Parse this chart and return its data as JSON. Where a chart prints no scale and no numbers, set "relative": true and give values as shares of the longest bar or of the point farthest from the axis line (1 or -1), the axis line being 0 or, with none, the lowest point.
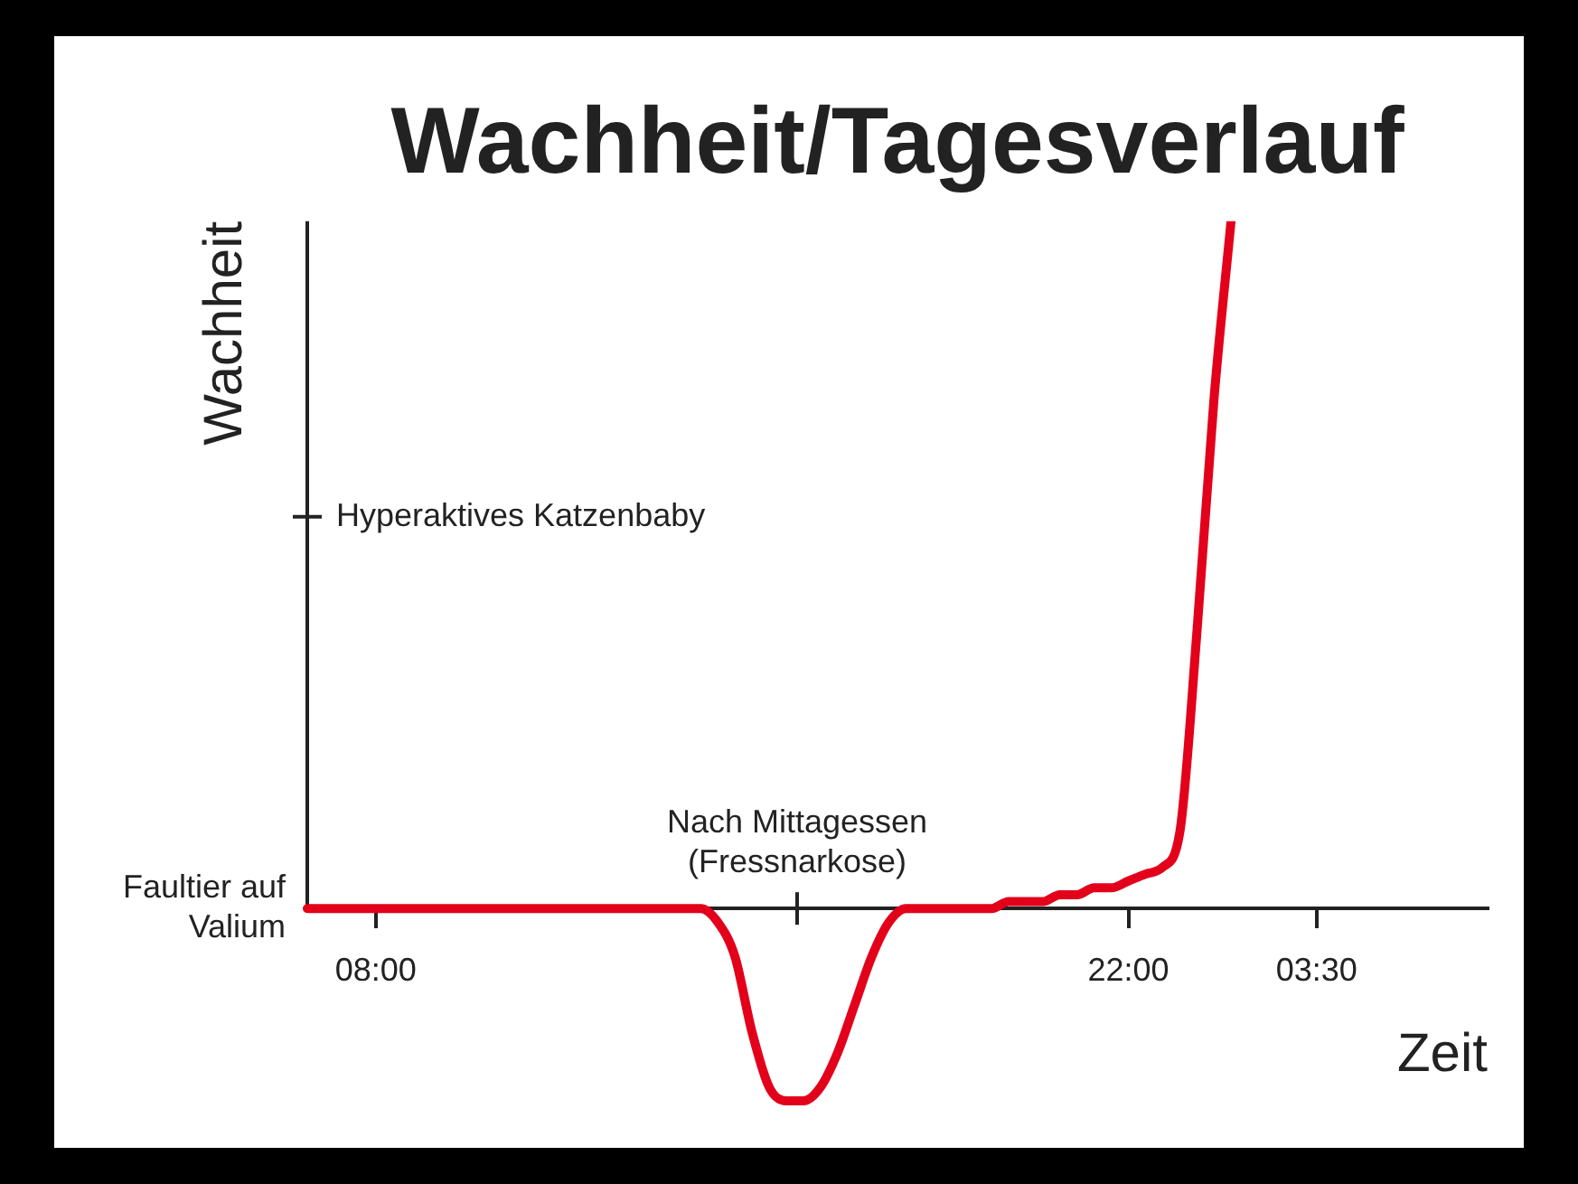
{
  "chart_data": {
    "type": "line",
    "title": "Wachheit/Tagesverlauf",
    "xlabel": "Zeit",
    "ylabel": "Wachheit",
    "relative": true,
    "categories": [
      null,
      null,
      null,
      null,
      "08:00",
      null,
      null,
      null,
      null,
      null,
      null,
      null,
      null,
      null,
      null,
      null,
      null,
      null,
      null,
      null,
      null,
      null,
      null,
      null,
      null,
      null,
      null,
      null,
      null,
      null,
      null,
      null,
      null,
      null,
      null,
      null,
      null,
      null,
      null,
      null,
      null,
      null,
      null,
      null,
      null,
      null,
      null,
      null,
      "22:00",
      null,
      null,
      null,
      null,
      null,
      null,
      null,
      null,
      null,
      null,
      "03:30",
      null,
      null,
      null,
      null,
      null,
      null,
      null,
      null,
      null,
      null
    ],
    "series": [
      {
        "color": "#e2001a",
        "values": [
          0,
          0,
          0,
          0,
          0,
          0,
          0,
          0,
          0,
          0,
          0,
          0,
          0,
          0,
          0,
          0,
          0,
          0,
          0,
          0,
          0,
          0,
          0,
          0,
          -0.02,
          -0.07,
          -0.18,
          -0.26,
          -0.28,
          -0.28,
          -0.26,
          -0.21,
          -0.14,
          -0.07,
          -0.02,
          0,
          0,
          0,
          0,
          0,
          0,
          0.01,
          0.01,
          0.01,
          0.02,
          0.02,
          0.03,
          0.03,
          0.04,
          0.05,
          0.06,
          0.11,
          0.4,
          0.74,
          1,
          null,
          null,
          null,
          null,
          null,
          null,
          null,
          null,
          null,
          null,
          null,
          null,
          null,
          null,
          null
        ]
      }
    ],
    "annotations": [
      "Nach Mittagessen (Fressnarkose)",
      "Faultier auf Valium",
      "Hyperaktives Katzenbaby"
    ],
    "grid": false,
    "legend": false,
    "marker": "none",
    "line_style": "solid"
  }
}
